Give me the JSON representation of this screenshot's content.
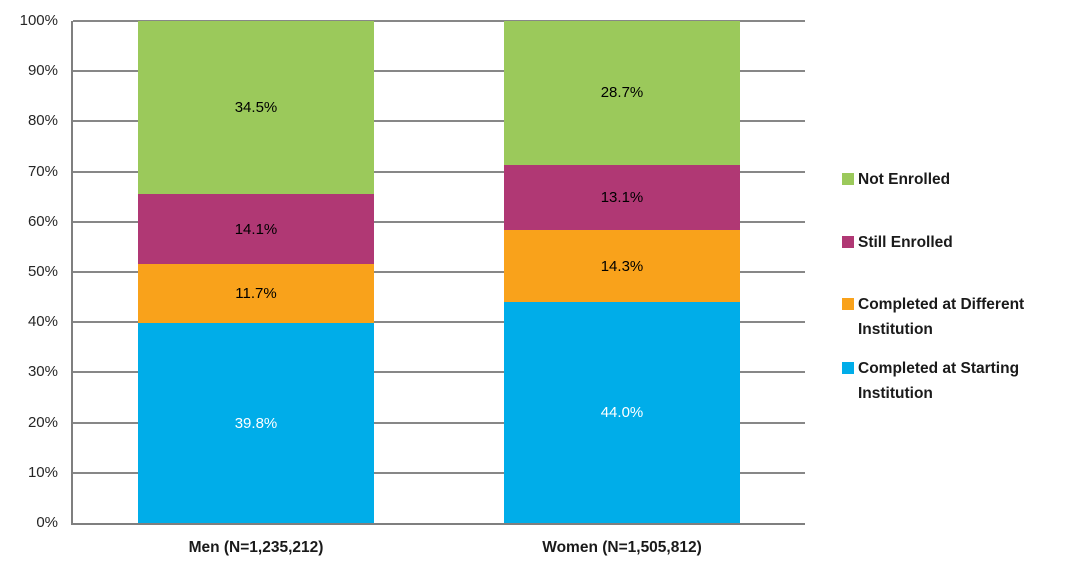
{
  "chart_data": {
    "type": "bar",
    "subtype": "stacked-100-percent-column",
    "title": "",
    "categories": [
      "Men (N=1,235,212)",
      "Women (N=1,505,812)"
    ],
    "series": [
      {
        "name": "Completed at Starting Institution",
        "color": "#00ADE9",
        "label_color": "#FFFFFF",
        "values": [
          39.8,
          44.0
        ]
      },
      {
        "name": "Completed at Different Institution",
        "color": "#F9A21B",
        "label_color": "#000000",
        "values": [
          11.7,
          14.3
        ]
      },
      {
        "name": "Still Enrolled",
        "color": "#B03874",
        "label_color": "#000000",
        "values": [
          14.1,
          13.1
        ]
      },
      {
        "name": "Not Enrolled",
        "color": "#9BC95B",
        "label_color": "#000000",
        "values": [
          34.5,
          28.7
        ]
      }
    ],
    "value_label_format": "percent-one-decimal",
    "y_axis": {
      "min": 0,
      "max": 100,
      "ticks": [
        "0%",
        "10%",
        "20%",
        "30%",
        "40%",
        "50%",
        "60%",
        "70%",
        "80%",
        "90%",
        "100%"
      ]
    },
    "grid": true,
    "legend": {
      "position": "right",
      "order": [
        "Not Enrolled",
        "Still Enrolled",
        "Completed at Different Institution",
        "Completed at Starting Institution"
      ]
    },
    "colors": {
      "gridline": "#878787",
      "axis": "#7F7F7F",
      "tick_label": "#262626",
      "category_label": "#1A1A1A",
      "legend_label": "#1A1A1A",
      "background": "#FFFFFF"
    }
  }
}
